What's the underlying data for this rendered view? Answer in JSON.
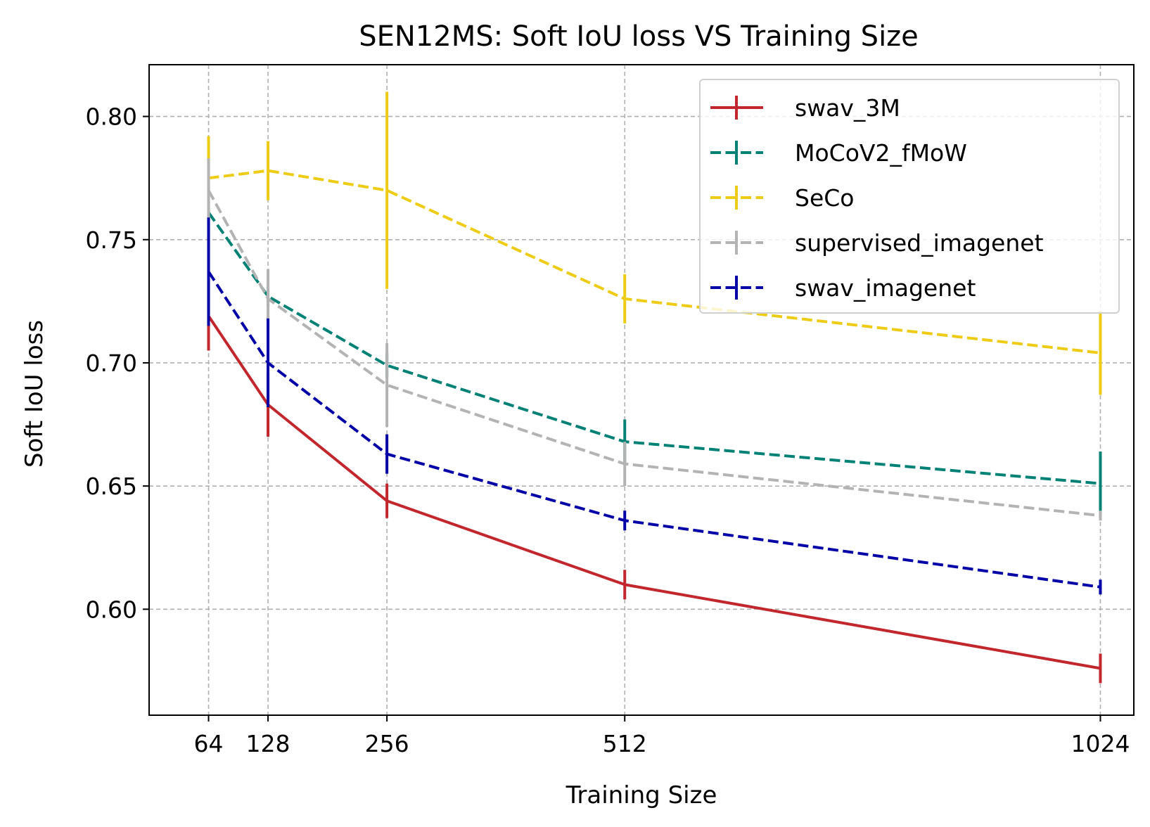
{
  "chart_data": {
    "type": "line",
    "title": "SEN12MS: Soft IoU loss VS Training Size",
    "xlabel": "Training Size",
    "ylabel": "Soft IoU loss",
    "x": [
      64,
      128,
      256,
      512,
      1024
    ],
    "x_tick_labels": [
      "64",
      "128",
      "256",
      "512",
      "1024"
    ],
    "y_ticks": [
      0.6,
      0.65,
      0.7,
      0.75,
      0.8
    ],
    "y_tick_labels": [
      "0.60",
      "0.65",
      "0.70",
      "0.75",
      "0.80"
    ],
    "xlim": [
      0,
      1060
    ],
    "ylim": [
      0.557,
      0.821
    ],
    "grid": true,
    "legend_position": "top-right",
    "series": [
      {
        "name": "swav_3M",
        "style": "solid",
        "color": "#c1272d",
        "values": [
          0.719,
          0.683,
          0.644,
          0.61,
          0.576
        ],
        "errors": [
          0.014,
          0.013,
          0.007,
          0.006,
          0.006
        ]
      },
      {
        "name": "MoCoV2_fMoW",
        "style": "dashed",
        "color": "#008176",
        "values": [
          0.761,
          0.727,
          0.699,
          0.668,
          0.651
        ],
        "errors": [
          0.005,
          0.004,
          0.005,
          0.009,
          0.013
        ]
      },
      {
        "name": "SeCo",
        "style": "dashed",
        "color": "#eecc16",
        "values": [
          0.775,
          0.778,
          0.77,
          0.726,
          0.704
        ],
        "errors": [
          0.017,
          0.012,
          0.04,
          0.01,
          0.017
        ]
      },
      {
        "name": "supervised_imagenet",
        "style": "dashed",
        "color": "#b3b3b3",
        "values": [
          0.77,
          0.726,
          0.691,
          0.659,
          0.638
        ],
        "errors": [
          0.013,
          0.012,
          0.017,
          0.009,
          0.002
        ]
      },
      {
        "name": "swav_imagenet",
        "style": "dashed",
        "color": "#0000a7",
        "values": [
          0.737,
          0.7,
          0.663,
          0.636,
          0.609
        ],
        "errors": [
          0.022,
          0.018,
          0.008,
          0.004,
          0.003
        ]
      }
    ]
  }
}
